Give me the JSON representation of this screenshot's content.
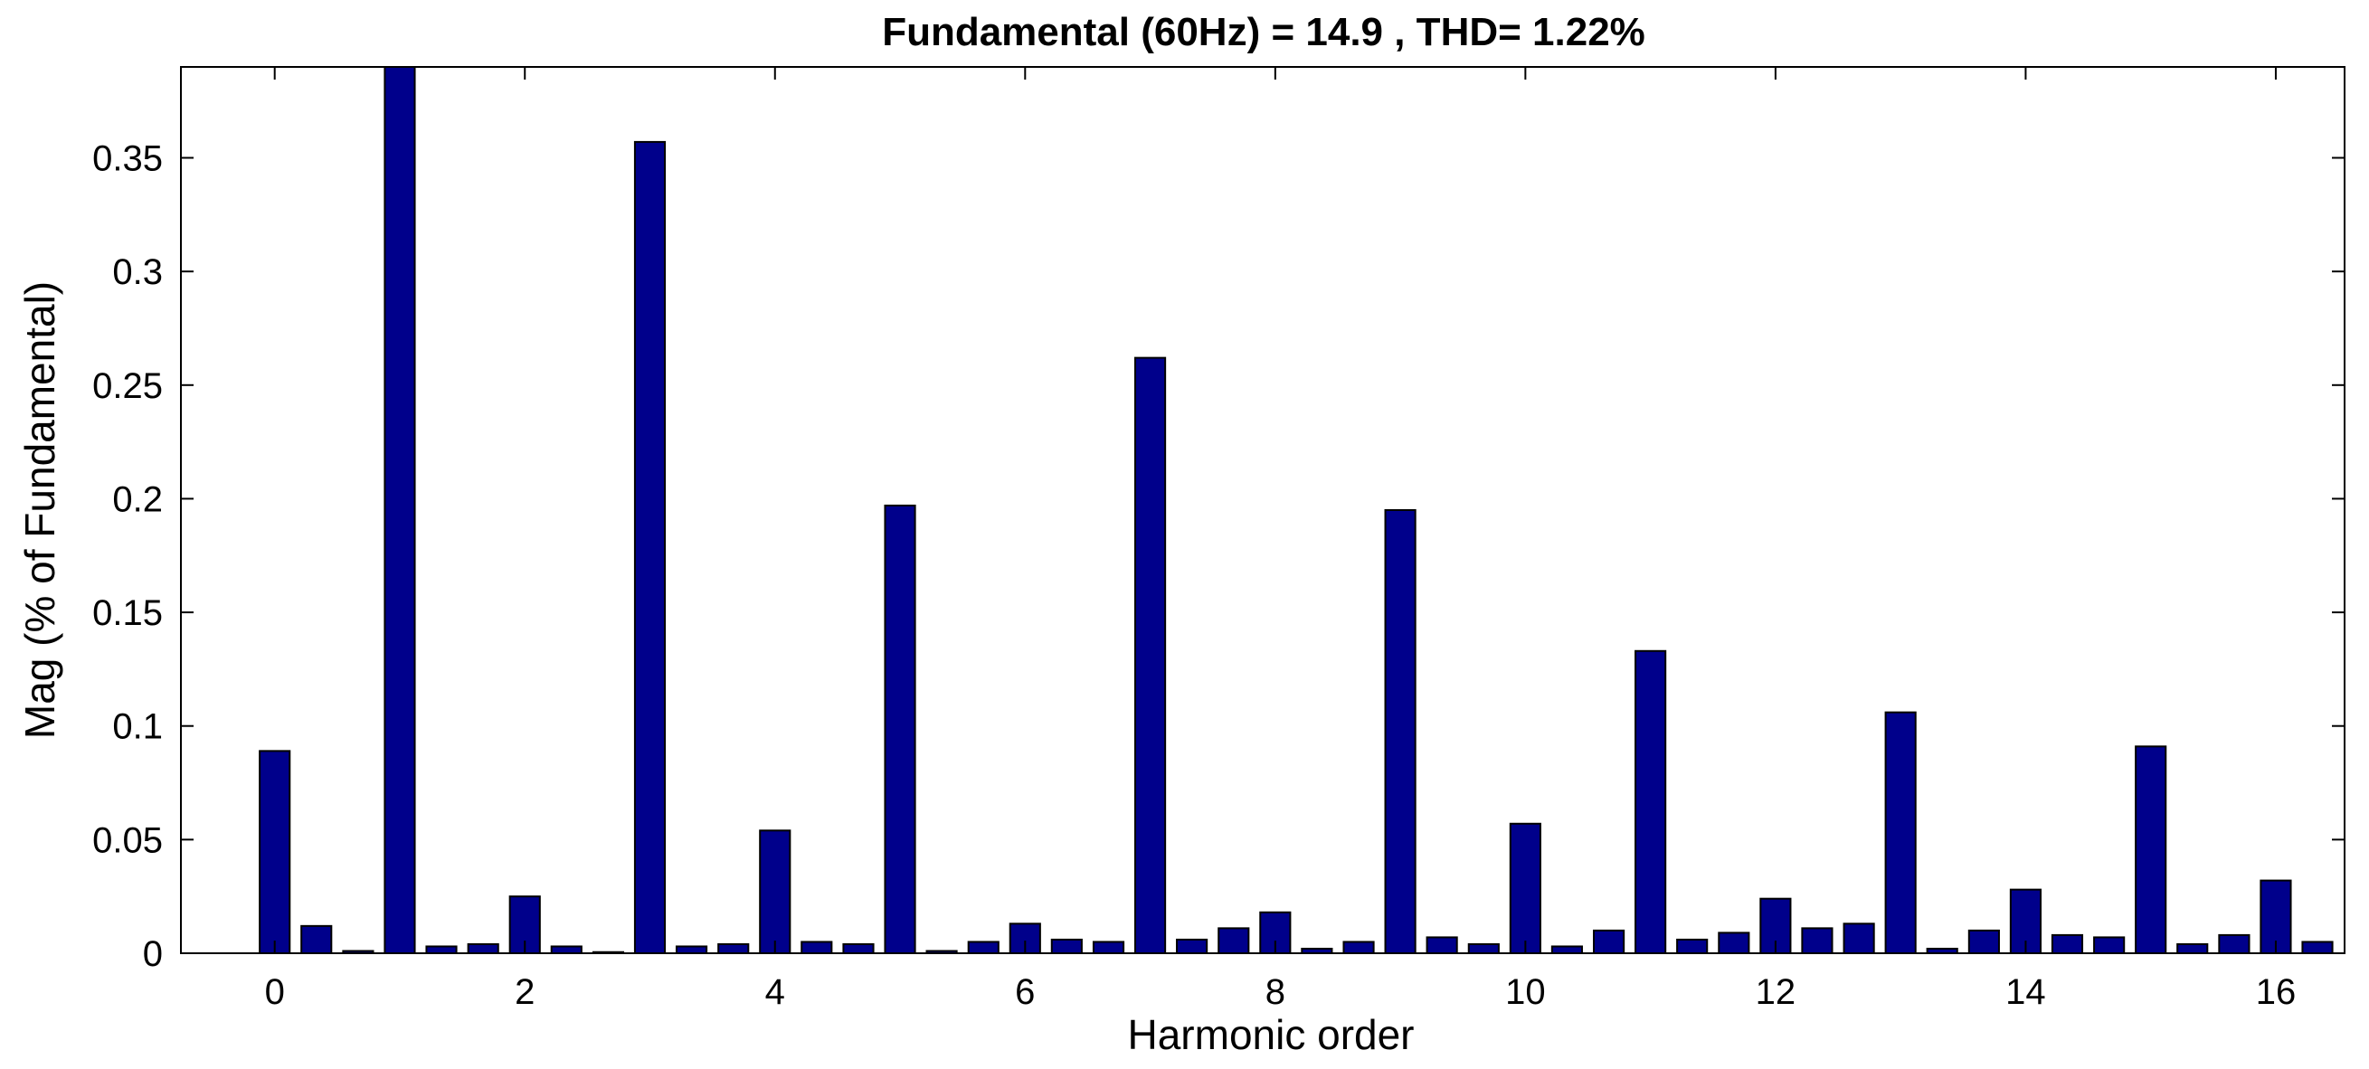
{
  "chart_data": {
    "type": "bar",
    "title": "Fundamental (60Hz) = 14.9 , THD= 1.22%",
    "xlabel": "Harmonic order",
    "ylabel": "Mag (% of Fundamental)",
    "xlim": [
      -0.75,
      16.55
    ],
    "ylim": [
      0,
      0.39
    ],
    "bar_color": "#00008b",
    "grid": false,
    "legend": "none",
    "x_ticks": [
      {
        "value": 0,
        "label": "0"
      },
      {
        "value": 2,
        "label": "2"
      },
      {
        "value": 4,
        "label": "4"
      },
      {
        "value": 6,
        "label": "6"
      },
      {
        "value": 8,
        "label": "8"
      },
      {
        "value": 10,
        "label": "10"
      },
      {
        "value": 12,
        "label": "12"
      },
      {
        "value": 14,
        "label": "14"
      },
      {
        "value": 16,
        "label": "16"
      }
    ],
    "y_ticks": [
      {
        "value": 0,
        "label": "0"
      },
      {
        "value": 0.05,
        "label": "0.05"
      },
      {
        "value": 0.1,
        "label": "0.1"
      },
      {
        "value": 0.15,
        "label": "0.15"
      },
      {
        "value": 0.2,
        "label": "0.2"
      },
      {
        "value": 0.25,
        "label": "0.25"
      },
      {
        "value": 0.3,
        "label": "0.3"
      },
      {
        "value": 0.35,
        "label": "0.35"
      }
    ],
    "x": [
      0,
      0.333,
      0.667,
      1,
      1.333,
      1.667,
      2,
      2.333,
      2.667,
      3,
      3.333,
      3.667,
      4,
      4.333,
      4.667,
      5,
      5.333,
      5.667,
      6,
      6.333,
      6.667,
      7,
      7.333,
      7.667,
      8,
      8.333,
      8.667,
      9,
      9.333,
      9.667,
      10,
      10.333,
      10.667,
      11,
      11.333,
      11.667,
      12,
      12.333,
      12.667,
      13,
      13.333,
      13.667,
      14,
      14.333,
      14.667,
      15,
      15.333,
      15.667,
      16,
      16.333
    ],
    "values": [
      0.089,
      0.012,
      0.001,
      0.39,
      0.003,
      0.004,
      0.025,
      0.003,
      0.0005,
      0.357,
      0.003,
      0.004,
      0.054,
      0.005,
      0.004,
      0.197,
      0.001,
      0.005,
      0.013,
      0.006,
      0.005,
      0.262,
      0.006,
      0.011,
      0.018,
      0.002,
      0.005,
      0.195,
      0.007,
      0.004,
      0.057,
      0.003,
      0.01,
      0.133,
      0.006,
      0.009,
      0.024,
      0.011,
      0.013,
      0.106,
      0.002,
      0.01,
      0.028,
      0.008,
      0.007,
      0.091,
      0.004,
      0.008,
      0.032,
      0.005
    ]
  }
}
